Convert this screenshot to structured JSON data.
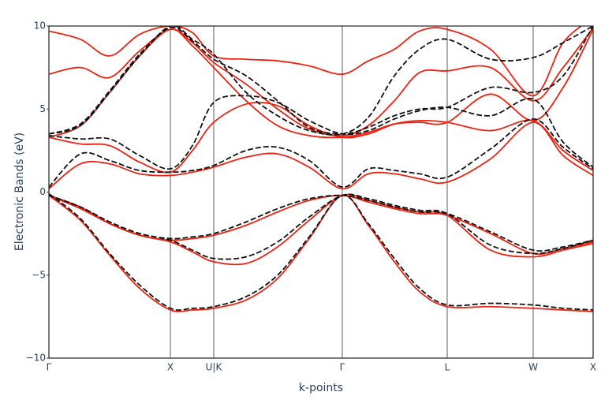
{
  "chart_data": {
    "type": "line",
    "xlabel": "k-points",
    "ylabel": "Electronic Bands (eV)",
    "x": [
      0,
      0.4,
      0.77,
      1.15,
      1.54,
      1.82,
      2.09,
      2.5,
      2.9,
      3.3,
      3.72,
      4.05,
      4.38,
      4.7,
      5.05,
      5.6,
      6.14,
      6.52,
      6.9
    ],
    "xlim": [
      0,
      6.9
    ],
    "xticks": [
      {
        "value": 0,
        "label": "Γ"
      },
      {
        "value": 1.54,
        "label": "X"
      },
      {
        "value": 2.09,
        "label": "U|K"
      },
      {
        "value": 3.72,
        "label": "Γ"
      },
      {
        "value": 5.05,
        "label": "L"
      },
      {
        "value": 6.14,
        "label": "W"
      },
      {
        "value": 6.9,
        "label": "X"
      }
    ],
    "ylim": [
      -10,
      10
    ],
    "yticks": [
      {
        "value": -10,
        "label": "−10"
      },
      {
        "value": -5,
        "label": "−5"
      },
      0,
      5,
      10
    ],
    "xgrid": true,
    "series": [
      {
        "color": "#ee2211",
        "dash": false,
        "values": [
          -0.2,
          -1.7,
          -3.8,
          -5.8,
          -7.1,
          -7.1,
          -7.0,
          -6.5,
          -5.2,
          -2.8,
          -0.2,
          -2.0,
          -4.2,
          -6.0,
          -6.9,
          -6.9,
          -7.0,
          -7.1,
          -7.2
        ]
      },
      {
        "color": "#ee2211",
        "dash": false,
        "values": [
          -0.2,
          -0.9,
          -1.9,
          -2.6,
          -3.0,
          -3.6,
          -4.2,
          -4.3,
          -3.3,
          -1.7,
          -0.2,
          -0.5,
          -0.9,
          -1.2,
          -1.4,
          -3.5,
          -3.9,
          -3.5,
          -3.1
        ]
      },
      {
        "color": "#ee2211",
        "dash": false,
        "values": [
          -0.2,
          -1.0,
          -1.9,
          -2.6,
          -2.9,
          -2.8,
          -2.6,
          -2.0,
          -1.2,
          -0.5,
          -0.2,
          -0.6,
          -1.0,
          -1.3,
          -1.4,
          -2.5,
          -3.7,
          -3.4,
          -3.0
        ]
      },
      {
        "color": "#ee2211",
        "dash": false,
        "values": [
          0.2,
          1.7,
          1.7,
          1.1,
          1.0,
          1.2,
          1.5,
          2.1,
          2.3,
          1.5,
          0.2,
          1.1,
          1.1,
          0.8,
          0.6,
          2.0,
          4.2,
          2.2,
          1.0
        ]
      },
      {
        "color": "#ee2211",
        "dash": false,
        "values": [
          3.3,
          2.9,
          2.8,
          1.8,
          1.2,
          2.5,
          4.2,
          5.3,
          5.2,
          4.0,
          3.3,
          3.5,
          4.1,
          4.3,
          4.2,
          3.7,
          4.3,
          2.5,
          1.3
        ]
      },
      {
        "color": "#ee2211",
        "dash": false,
        "values": [
          3.3,
          4.0,
          6.0,
          8.2,
          9.8,
          8.8,
          7.5,
          5.5,
          4.0,
          3.4,
          3.3,
          3.6,
          4.1,
          4.2,
          4.2,
          5.9,
          4.3,
          6.3,
          9.8
        ]
      },
      {
        "color": "#ee2211",
        "dash": false,
        "values": [
          7.1,
          7.5,
          6.9,
          8.5,
          9.8,
          9.0,
          7.8,
          6.5,
          5.0,
          3.8,
          3.4,
          4.0,
          5.5,
          7.2,
          7.3,
          7.5,
          5.5,
          7.5,
          9.9
        ]
      },
      {
        "color": "#ee2211",
        "dash": false,
        "values": [
          9.7,
          9.2,
          8.2,
          9.5,
          10,
          9.6,
          8.2,
          8.0,
          7.9,
          7.6,
          7.1,
          7.9,
          8.6,
          9.7,
          9.8,
          8.6,
          5.8,
          9.0,
          10.5
        ]
      },
      {
        "color": "#111111",
        "dash": true,
        "values": [
          -0.1,
          -1.6,
          -3.7,
          -5.6,
          -7.0,
          -7.0,
          -6.9,
          -6.3,
          -5.0,
          -2.7,
          -0.2,
          -1.9,
          -4.0,
          -5.8,
          -6.8,
          -6.7,
          -6.8,
          -7.0,
          -7.1
        ]
      },
      {
        "color": "#111111",
        "dash": true,
        "values": [
          -0.2,
          -0.9,
          -1.8,
          -2.5,
          -2.9,
          -3.5,
          -4.0,
          -3.9,
          -3.0,
          -1.5,
          -0.2,
          -0.4,
          -0.8,
          -1.1,
          -1.3,
          -3.2,
          -3.7,
          -3.4,
          -2.9
        ]
      },
      {
        "color": "#111111",
        "dash": true,
        "values": [
          -0.2,
          -0.9,
          -1.8,
          -2.5,
          -2.8,
          -2.7,
          -2.5,
          -1.8,
          -1.0,
          -0.4,
          -0.2,
          -0.5,
          -0.9,
          -1.2,
          -1.3,
          -2.4,
          -3.5,
          -3.3,
          -2.9
        ]
      },
      {
        "color": "#111111",
        "dash": true,
        "values": [
          0.3,
          2.3,
          1.9,
          1.3,
          1.2,
          1.3,
          1.6,
          2.5,
          2.7,
          1.9,
          0.3,
          1.4,
          1.3,
          1.1,
          0.9,
          2.6,
          4.4,
          2.7,
          1.4
        ]
      },
      {
        "color": "#111111",
        "dash": true,
        "values": [
          3.4,
          3.2,
          3.2,
          2.2,
          1.4,
          2.8,
          5.4,
          5.8,
          5.4,
          4.3,
          3.5,
          3.7,
          4.4,
          4.9,
          5.1,
          4.6,
          5.6,
          3.0,
          1.5
        ]
      },
      {
        "color": "#111111",
        "dash": true,
        "values": [
          3.5,
          4.1,
          6.1,
          8.3,
          9.9,
          9.1,
          8.0,
          7.0,
          5.5,
          3.9,
          3.5,
          3.9,
          4.6,
          5.0,
          5.1,
          6.3,
          6.0,
          7.0,
          10.0
        ]
      },
      {
        "color": "#111111",
        "dash": true,
        "values": [
          3.5,
          4.0,
          6.0,
          8.2,
          10.0,
          9.2,
          8.3,
          6.0,
          4.6,
          3.7,
          3.5,
          4.5,
          7.0,
          8.6,
          9.2,
          8.0,
          8.1,
          9.0,
          10.0
        ]
      }
    ]
  }
}
